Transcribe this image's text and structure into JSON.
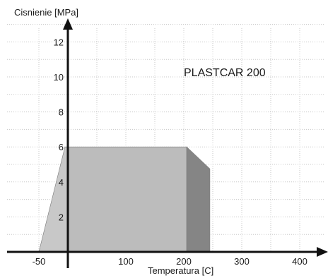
{
  "chart_data": {
    "type": "area",
    "title": "PLASTCAR 200",
    "xlabel": "Temperatura [C]",
    "ylabel": "Cisnienie [MPa]",
    "xlim": [
      -100,
      450
    ],
    "ylim": [
      0,
      13
    ],
    "x_ticks": [
      -50,
      100,
      200,
      300,
      400
    ],
    "y_ticks": [
      2,
      4,
      6,
      8,
      10,
      12
    ],
    "grid": true,
    "regions": [
      {
        "name": "low-temperature-wedge",
        "color": "#c8c8c8",
        "points": [
          [
            -50,
            0
          ],
          [
            0,
            0
          ],
          [
            0,
            6
          ],
          [
            -5,
            6
          ]
        ]
      },
      {
        "name": "main-operating-area",
        "color": "#bcbcbc",
        "points": [
          [
            0,
            0
          ],
          [
            205,
            0
          ],
          [
            205,
            6
          ],
          [
            0,
            6
          ]
        ]
      },
      {
        "name": "derating-area",
        "color": "#858585",
        "points": [
          [
            205,
            0
          ],
          [
            245,
            0
          ],
          [
            245,
            4.75
          ],
          [
            205,
            6
          ]
        ]
      }
    ]
  }
}
